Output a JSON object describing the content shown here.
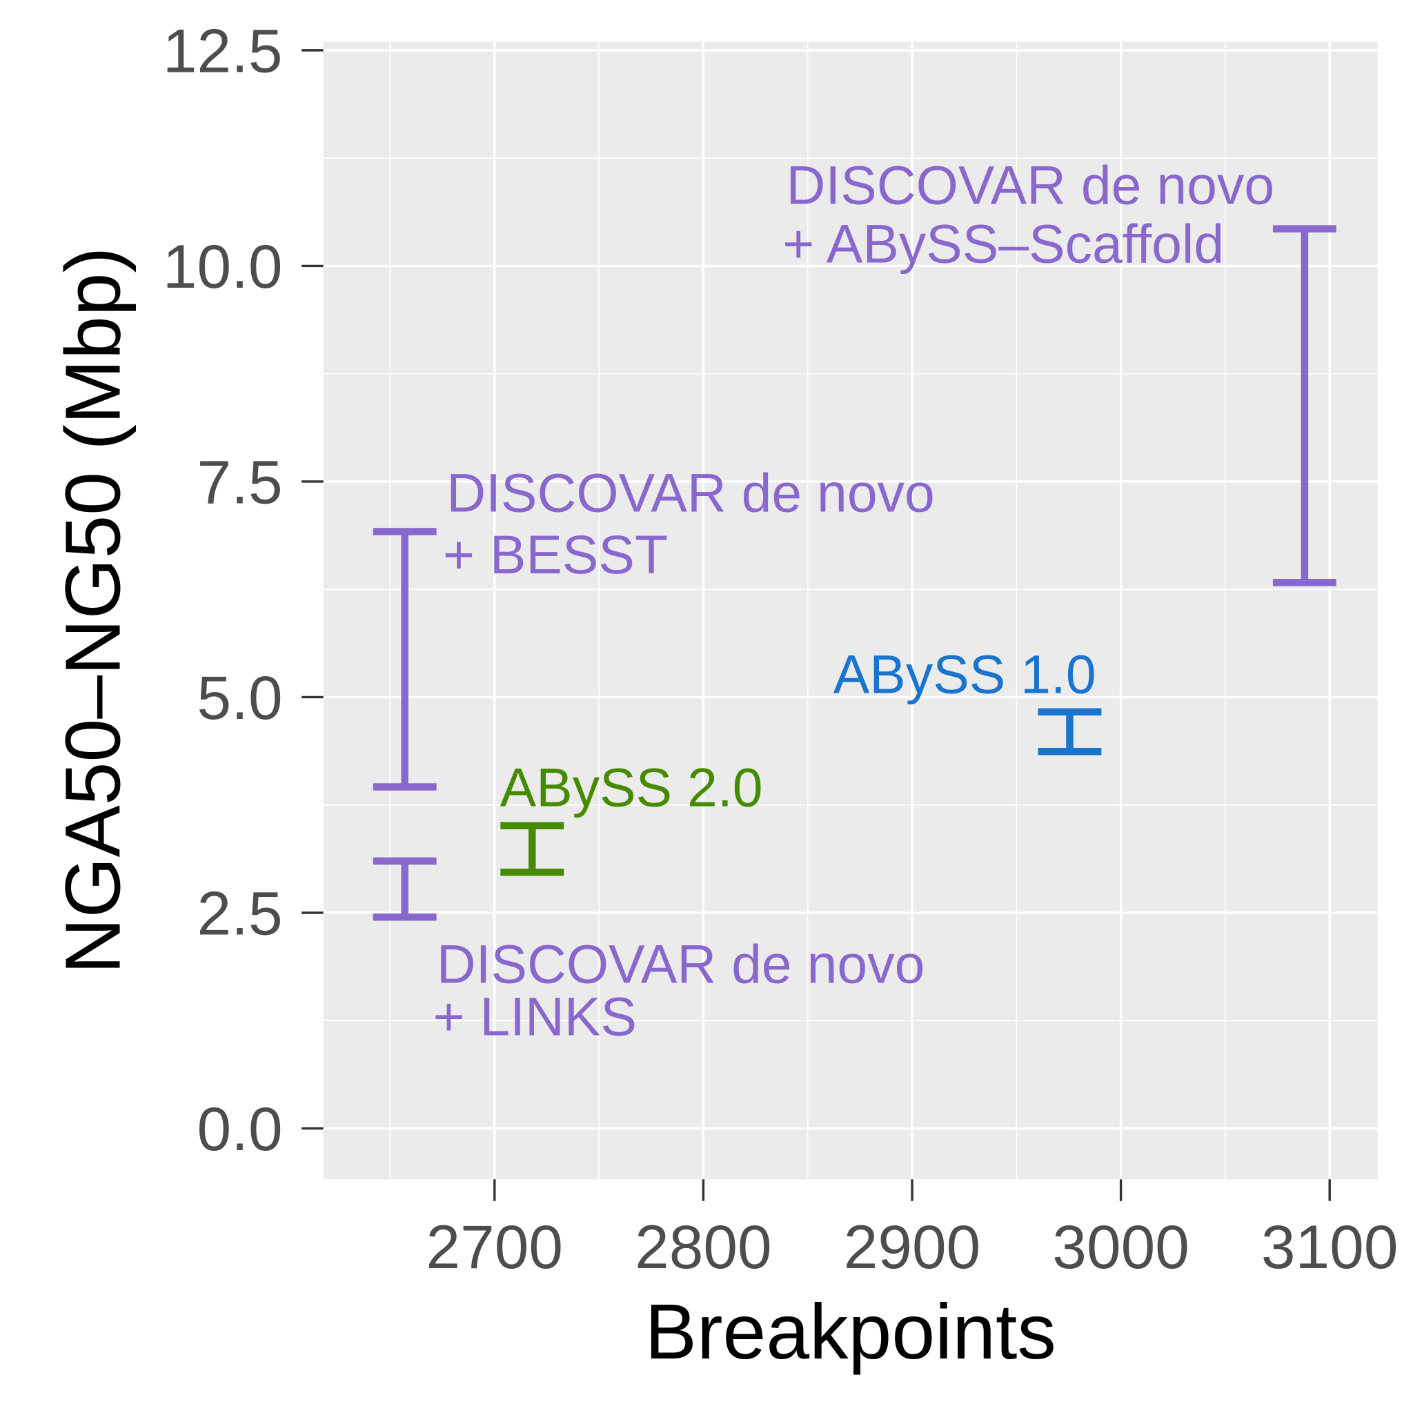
{
  "chart_data": {
    "type": "errorbar",
    "xlabel": "Breakpoints",
    "ylabel": "NGA50–NG50 (Mbp)",
    "xlim": [
      2618,
      3123
    ],
    "ylim": [
      -0.59,
      12.6
    ],
    "xticks": [
      2700,
      2800,
      2900,
      3000,
      3100
    ],
    "yticks": [
      {
        "value": 0,
        "label": "0.0"
      },
      2.5,
      {
        "value": 5,
        "label": "5.0"
      },
      7.5,
      {
        "value": 10,
        "label": "10.0"
      },
      12.5
    ],
    "grid": true,
    "series": [
      {
        "name": [
          "DISCOVAR de novo",
          "+ LINKS"
        ],
        "color": "#8968cd",
        "x": 2657,
        "low": 2.45,
        "high": 3.1
      },
      {
        "name": [
          "DISCOVAR de novo",
          "+ BESST"
        ],
        "color": "#8968cd",
        "x": 2657,
        "low": 3.96,
        "high": 6.92
      },
      {
        "name": [
          "ABySS 2.0"
        ],
        "color": "#458b00",
        "x": 2718,
        "low": 2.97,
        "high": 3.51
      },
      {
        "name": [
          "ABySS 1.0"
        ],
        "color": "#1874cd",
        "x": 2975.5,
        "low": 4.37,
        "high": 4.83
      },
      {
        "name": [
          "DISCOVAR de novo",
          "+ ABySS–Scaffold"
        ],
        "color": "#8968cd",
        "x": 3088,
        "low": 6.33,
        "high": 10.43
      }
    ]
  }
}
